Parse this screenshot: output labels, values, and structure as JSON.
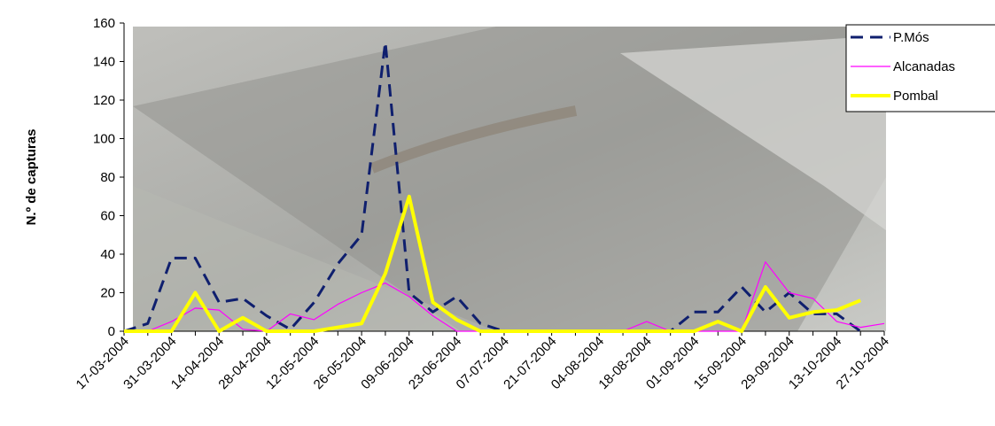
{
  "chart_data": {
    "type": "line",
    "y_label": "N.º de capturas",
    "categories": [
      "17-03-2004",
      null,
      "31-03-2004",
      null,
      "14-04-2004",
      null,
      "28-04-2004",
      null,
      "12-05-2004",
      null,
      "26-05-2004",
      null,
      "09-06-2004",
      null,
      "23-06-2004",
      null,
      "07-07-2004",
      null,
      "21-07-2004",
      null,
      "04-08-2004",
      null,
      "18-08-2004",
      null,
      "01-09-2004",
      null,
      "15-09-2004",
      null,
      "29-09-2004",
      null,
      "13-10-2004",
      null,
      "27-10-2004"
    ],
    "series": [
      {
        "name": "P.Mós",
        "color": "#0f1f6e",
        "dash": true,
        "width": 3,
        "values": [
          0,
          4,
          38,
          38,
          15,
          17,
          8,
          1,
          15,
          35,
          50,
          150,
          20,
          10,
          18,
          4,
          0,
          0,
          0,
          0,
          0,
          0,
          0,
          0,
          10,
          10,
          23,
          10,
          20,
          9,
          9,
          0,
          null
        ]
      },
      {
        "name": "Alcanadas",
        "color": "#ff00ff",
        "dash": false,
        "width": 1.2,
        "values": [
          0,
          0,
          5,
          12,
          11,
          1,
          0,
          9,
          6,
          14,
          20,
          25,
          18,
          8,
          0,
          0,
          0,
          0,
          0,
          0,
          0,
          0,
          5,
          0,
          0,
          0,
          0,
          36,
          20,
          17,
          5,
          2,
          4
        ]
      },
      {
        "name": "Pombal",
        "color": "#ffff00",
        "dash": false,
        "width": 4,
        "values": [
          0,
          0,
          0,
          20,
          0,
          7,
          0,
          0,
          0,
          2,
          4,
          30,
          70,
          15,
          6,
          0,
          0,
          0,
          0,
          0,
          0,
          0,
          0,
          0,
          0,
          5,
          0,
          23,
          7,
          10,
          11,
          16,
          null
        ]
      }
    ],
    "ylim": [
      0,
      160
    ],
    "yticks": [
      0,
      20,
      40,
      60,
      80,
      100,
      120,
      140,
      160
    ]
  }
}
